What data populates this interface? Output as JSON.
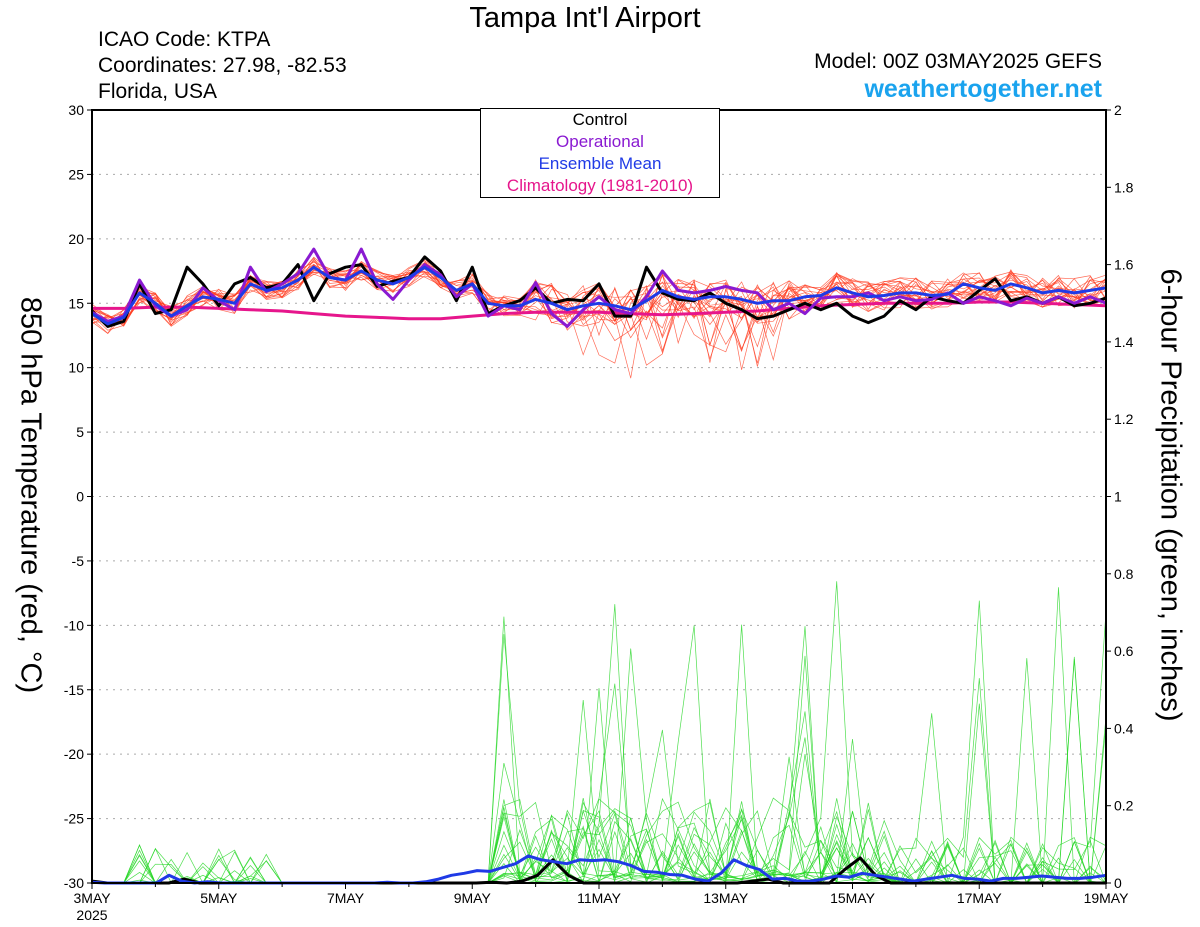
{
  "header": {
    "title": "Tampa Int'l Airport",
    "icao": "ICAO Code: KTPA",
    "coords": "Coordinates: 27.98, -82.53",
    "region": "Florida, USA",
    "model": "Model: 00Z 03MAY2025 GEFS",
    "site": "weathertogether.net"
  },
  "colors": {
    "control": "#000000",
    "operational": "#8a1ad1",
    "ensemble_mean": "#1f3ae6",
    "climatology": "#e6168c",
    "members_temp": "#ff3a1e",
    "members_precip": "#22d622",
    "site": "#1aa3ee"
  },
  "chart_data": {
    "type": "line",
    "ylabel": "850 hPa Temperature (red, °C)",
    "y2label": "6-hour Precipitation (green, inches)",
    "ylim": [
      -30,
      30
    ],
    "y2lim": [
      0,
      2
    ],
    "yticks": [
      "30",
      "25",
      "20",
      "15",
      "10",
      "5",
      "0",
      "-5",
      "-10",
      "-15",
      "-20",
      "-25",
      "-30"
    ],
    "y2ticks": [
      "2",
      "1.8",
      "1.6",
      "1.4",
      "1.2",
      "1",
      "0.8",
      "0.6",
      "0.4",
      "0.2",
      "0"
    ],
    "x_range": [
      0,
      16
    ],
    "x_unit": "days after 2025-05-03 00Z",
    "x_tick_labels": [
      "3MAY",
      "5MAY",
      "7MAY",
      "9MAY",
      "11MAY",
      "13MAY",
      "15MAY",
      "17MAY",
      "19MAY"
    ],
    "x_tick_positions": [
      0,
      2,
      4,
      6,
      8,
      10,
      12,
      14,
      16
    ],
    "x_year_label": "2025",
    "grid": true,
    "legend": {
      "position": "top-center",
      "entries": [
        "Control",
        "Operational",
        "Ensemble Mean",
        "Climatology (1981-2010)"
      ]
    },
    "series": [
      {
        "name": "Climatology (1981-2010)",
        "axis": "left",
        "values": [
          14.6,
          14.6,
          14.7,
          14.7,
          14.6,
          14.5,
          14.4,
          14.2,
          14.0,
          13.9,
          13.8,
          13.8,
          14.0,
          14.2,
          14.3,
          14.3,
          14.3,
          14.2,
          14.1,
          14.2,
          14.3,
          14.4,
          14.6,
          14.8,
          14.9,
          15.0,
          15.0,
          15.0,
          15.1,
          15.1,
          15.0,
          14.9,
          14.8
        ]
      },
      {
        "name": "Control",
        "axis": "left",
        "values": [
          14.4,
          13.2,
          13.6,
          16.5,
          14.2,
          14.5,
          17.8,
          16.5,
          14.8,
          16.5,
          17.0,
          16.2,
          16.5,
          18.0,
          15.2,
          17.3,
          17.8,
          18.0,
          16.3,
          16.7,
          17.0,
          18.6,
          17.5,
          15.2,
          17.8,
          14.2,
          14.8,
          15.2,
          16.2,
          15.0,
          15.3,
          15.2,
          16.5,
          14.0,
          14.0,
          17.8,
          15.8,
          15.3,
          15.2,
          15.8,
          15.0,
          14.5,
          13.8,
          14.0,
          14.5,
          15.0,
          14.5,
          15.0,
          14.0,
          13.5,
          14.0,
          15.2,
          14.5,
          15.5,
          15.2,
          15.0,
          16.0,
          16.9,
          15.2,
          15.5,
          15.0,
          15.5,
          14.8,
          15.0,
          15.4
        ]
      },
      {
        "name": "Operational",
        "axis": "left",
        "values": [
          14.3,
          13.6,
          14.0,
          16.8,
          14.8,
          14.0,
          14.5,
          16.2,
          15.2,
          14.5,
          17.8,
          15.9,
          16.5,
          17.3,
          19.2,
          17.0,
          16.8,
          19.2,
          16.5,
          15.3,
          16.8,
          18.0,
          17.2,
          15.5,
          16.5,
          14.0,
          14.8,
          14.5,
          16.6,
          14.2,
          13.2,
          14.5,
          15.5,
          14.5,
          14.2,
          15.5,
          17.5,
          16.0,
          15.8,
          16.0,
          16.3,
          16.0,
          15.8,
          14.5,
          15.0,
          14.2,
          15.4,
          15.5,
          15.5,
          15.8,
          15.2,
          15.5,
          15.2,
          15.3,
          15.8,
          15.0,
          15.5,
          15.2,
          14.8,
          15.4,
          15.0,
          15.5,
          15.0,
          15.5,
          15.0
        ]
      },
      {
        "name": "Ensemble Mean",
        "axis": "left",
        "values": [
          14.2,
          13.4,
          13.9,
          15.8,
          15.0,
          14.0,
          14.8,
          15.5,
          15.3,
          15.0,
          16.5,
          16.0,
          16.2,
          16.8,
          17.8,
          17.0,
          16.8,
          17.5,
          16.8,
          16.5,
          17.0,
          17.8,
          17.0,
          16.0,
          16.5,
          15.0,
          14.8,
          14.8,
          15.3,
          15.0,
          14.5,
          14.8,
          15.0,
          14.8,
          14.5,
          15.2,
          16.0,
          15.5,
          15.3,
          15.5,
          15.5,
          15.3,
          15.0,
          15.2,
          15.2,
          15.5,
          15.6,
          16.2,
          15.8,
          15.5,
          15.6,
          15.8,
          15.8,
          15.6,
          15.7,
          16.5,
          16.2,
          16.0,
          16.5,
          16.2,
          15.8,
          16.0,
          15.8,
          16.0,
          16.2
        ]
      },
      {
        "name": "Control",
        "axis": "right",
        "values": [
          0.005,
          0,
          0,
          0,
          0,
          0,
          0.01,
          0,
          0,
          0,
          0,
          0,
          0,
          0,
          0,
          0,
          0,
          0,
          0,
          0,
          0,
          0,
          0,
          0,
          0,
          0,
          0.002,
          0,
          0.005,
          0.02,
          0.06,
          0.02,
          0,
          0,
          0,
          0,
          0,
          0,
          0,
          0,
          0,
          0,
          0,
          0.005,
          0.01,
          0,
          0,
          0,
          0,
          0.035,
          0.065,
          0.02,
          0,
          0,
          0,
          0,
          0,
          0,
          0,
          0,
          0,
          0,
          0,
          0,
          0,
          0,
          0
        ]
      },
      {
        "name": "Ensemble Mean",
        "axis": "right",
        "values": [
          0.002,
          0,
          0,
          0,
          0,
          0,
          0.02,
          0.005,
          0,
          0.003,
          0,
          0,
          0,
          0,
          0,
          0,
          0,
          0,
          0,
          0,
          0,
          0,
          0,
          0.002,
          0,
          0,
          0.003,
          0.01,
          0.02,
          0.025,
          0.032,
          0.03,
          0.04,
          0.05,
          0.07,
          0.06,
          0.055,
          0.05,
          0.06,
          0.058,
          0.06,
          0.055,
          0.045,
          0.03,
          0.028,
          0.022,
          0.02,
          0.01,
          0.005,
          0.025,
          0.06,
          0.045,
          0.035,
          0.01,
          0.012,
          0.005,
          0.005,
          0.01,
          0.018,
          0.015,
          0.025,
          0.02,
          0.015,
          0.01,
          0.005,
          0.01,
          0.015,
          0.02,
          0.012,
          0.01,
          0.005,
          0.012,
          0.012,
          0.015,
          0.018,
          0.015,
          0.012,
          0.012,
          0.015,
          0.02
        ]
      }
    ]
  }
}
